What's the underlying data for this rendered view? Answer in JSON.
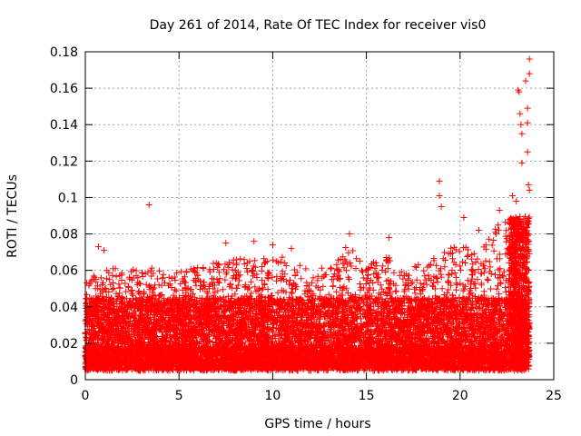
{
  "chart_data": {
    "type": "scatter",
    "title": "Day 261 of 2014, Rate Of TEC Index for receiver vis0",
    "xlabel": "GPS time / hours",
    "ylabel": "ROTI / TECUs",
    "xlim": [
      0,
      25
    ],
    "ylim": [
      0,
      0.18
    ],
    "x_ticks": [
      0,
      5,
      10,
      15,
      20,
      25
    ],
    "x_tick_labels": [
      "0",
      "5",
      "10",
      "15",
      "20",
      "25"
    ],
    "y_ticks": [
      0,
      0.02,
      0.04,
      0.06,
      0.08,
      0.1,
      0.12,
      0.14,
      0.16,
      0.18
    ],
    "y_tick_labels": [
      "0",
      "0.02",
      "0.04",
      "0.06",
      "0.08",
      "0.1",
      "0.12",
      "0.14",
      "0.16",
      "0.18"
    ],
    "grid": true,
    "marker": "+",
    "color": "#ff0000",
    "series": [
      {
        "name": "ROTI",
        "bulk_band": {
          "x_range": [
            0,
            23.7
          ],
          "typical_range": [
            0.005,
            0.045
          ],
          "peak_envelope": [
            [
              0,
              0.055
            ],
            [
              1,
              0.06
            ],
            [
              2,
              0.062
            ],
            [
              3,
              0.06
            ],
            [
              4,
              0.063
            ],
            [
              5,
              0.06
            ],
            [
              6,
              0.062
            ],
            [
              7,
              0.065
            ],
            [
              8,
              0.066
            ],
            [
              9,
              0.068
            ],
            [
              10,
              0.07
            ],
            [
              11,
              0.065
            ],
            [
              12,
              0.06
            ],
            [
              13,
              0.062
            ],
            [
              14,
              0.075
            ],
            [
              15,
              0.062
            ],
            [
              16,
              0.07
            ],
            [
              17,
              0.058
            ],
            [
              18,
              0.065
            ],
            [
              19,
              0.07
            ],
            [
              20,
              0.075
            ],
            [
              21,
              0.07
            ],
            [
              22,
              0.085
            ],
            [
              23,
              0.09
            ],
            [
              23.7,
              0.05
            ]
          ]
        },
        "notable_points": [
          {
            "x": 0.7,
            "y": 0.073
          },
          {
            "x": 1.0,
            "y": 0.071
          },
          {
            "x": 3.4,
            "y": 0.096
          },
          {
            "x": 7.5,
            "y": 0.075
          },
          {
            "x": 9.0,
            "y": 0.076
          },
          {
            "x": 10.0,
            "y": 0.074
          },
          {
            "x": 11.0,
            "y": 0.072
          },
          {
            "x": 14.1,
            "y": 0.08
          },
          {
            "x": 16.2,
            "y": 0.078
          },
          {
            "x": 18.9,
            "y": 0.109
          },
          {
            "x": 18.9,
            "y": 0.101
          },
          {
            "x": 19.0,
            "y": 0.095
          },
          {
            "x": 20.2,
            "y": 0.089
          },
          {
            "x": 21.0,
            "y": 0.082
          },
          {
            "x": 22.1,
            "y": 0.093
          },
          {
            "x": 22.8,
            "y": 0.101
          },
          {
            "x": 23.0,
            "y": 0.098
          },
          {
            "x": 23.1,
            "y": 0.159
          },
          {
            "x": 23.15,
            "y": 0.158
          },
          {
            "x": 23.2,
            "y": 0.146
          },
          {
            "x": 23.25,
            "y": 0.14
          },
          {
            "x": 23.3,
            "y": 0.135
          },
          {
            "x": 23.3,
            "y": 0.119
          },
          {
            "x": 23.5,
            "y": 0.164
          },
          {
            "x": 23.6,
            "y": 0.149
          },
          {
            "x": 23.6,
            "y": 0.141
          },
          {
            "x": 23.6,
            "y": 0.125
          },
          {
            "x": 23.65,
            "y": 0.107
          },
          {
            "x": 23.7,
            "y": 0.168
          },
          {
            "x": 23.7,
            "y": 0.176
          },
          {
            "x": 23.7,
            "y": 0.104
          }
        ]
      }
    ]
  }
}
